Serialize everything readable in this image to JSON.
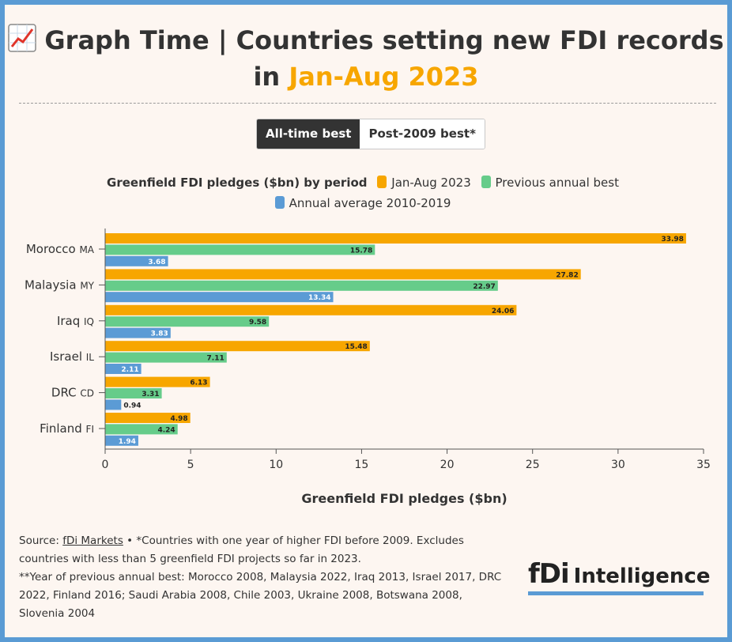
{
  "header": {
    "title_main": "Graph Time | Countries setting new FDI records in",
    "title_highlight": "Jan-Aug 2023",
    "icon": "chart-increasing-icon"
  },
  "toggle": {
    "options": [
      "All-time best",
      "Post-2009 best*"
    ],
    "selected": "All-time best"
  },
  "legend": {
    "title": "Greenfield FDI pledges ($bn) by period",
    "items": [
      "Jan-Aug 2023",
      "Previous annual best",
      "Annual average 2010-2019"
    ]
  },
  "colors": {
    "jan_aug_2023": "#f7a600",
    "previous_best": "#66cc8a",
    "average": "#5b9bd5",
    "background": "#fdf6f1",
    "frame": "#5a9bd4"
  },
  "chart_data": {
    "type": "bar",
    "orientation": "horizontal",
    "categories": [
      "Morocco",
      "Malaysia",
      "Iraq",
      "Israel",
      "DRC",
      "Finland"
    ],
    "category_codes": [
      "MA",
      "MY",
      "IQ",
      "IL",
      "CD",
      "FI"
    ],
    "series": [
      {
        "name": "Jan-Aug 2023",
        "values": [
          33.98,
          27.82,
          24.06,
          15.48,
          6.13,
          4.98
        ]
      },
      {
        "name": "Previous annual best",
        "values": [
          15.78,
          22.97,
          9.58,
          7.11,
          3.31,
          4.24
        ]
      },
      {
        "name": "Annual average 2010-2019",
        "values": [
          3.68,
          13.34,
          3.83,
          2.11,
          0.94,
          1.94
        ]
      }
    ],
    "xlabel": "Greenfield FDI pledges ($bn)",
    "xlim": [
      0,
      35
    ],
    "xticks": [
      0,
      5,
      10,
      15,
      20,
      25,
      30,
      35
    ],
    "grid": false,
    "legend_position": "top"
  },
  "footer": {
    "source_prefix": "Source:",
    "source_link": "fDi Markets",
    "note_1": "• *Countries with one year of higher FDI before 2009. Excludes countries with less than 5 greenfield FDI projects so far in 2023.",
    "note_2": "**Year of previous annual best: Morocco 2008, Malaysia 2022, Iraq 2013, Israel 2017, DRC 2022, Finland 2016; Saudi Arabia 2008, Chile 2003, Ukraine 2008, Botswana 2008, Slovenia 2004"
  },
  "logo": {
    "brand": "fDi",
    "text": "Intelligence"
  }
}
